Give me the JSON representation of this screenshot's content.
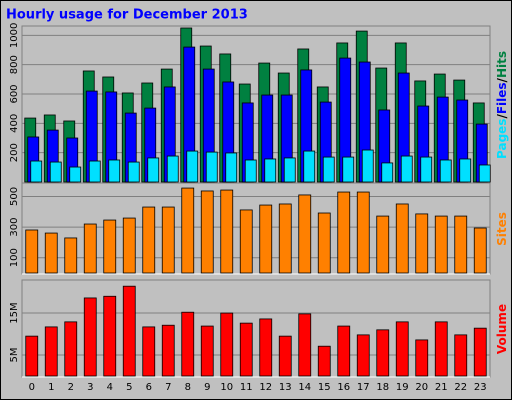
{
  "chart_data": [
    {
      "type": "bar",
      "title": "Hourly usage for December 2013",
      "categories": [
        "0",
        "1",
        "2",
        "3",
        "4",
        "5",
        "6",
        "7",
        "8",
        "9",
        "10",
        "11",
        "12",
        "13",
        "14",
        "15",
        "16",
        "17",
        "18",
        "19",
        "20",
        "21",
        "22",
        "23"
      ],
      "legend_separator": "/",
      "ylim": [
        0,
        1050
      ],
      "yticks": [
        200,
        400,
        600,
        800,
        1000
      ],
      "series": [
        {
          "name": "Hits",
          "color": "#008040",
          "values": [
            436,
            457,
            416,
            757,
            716,
            607,
            675,
            770,
            1050,
            927,
            873,
            668,
            811,
            743,
            907,
            648,
            948,
            1029,
            777,
            948,
            689,
            736,
            695,
            539
          ]
        },
        {
          "name": "Files",
          "color": "#0000ff",
          "values": [
            307,
            354,
            300,
            620,
            614,
            470,
            504,
            648,
            920,
            770,
            682,
            539,
            593,
            593,
            764,
            545,
            845,
            818,
            491,
            743,
            518,
            579,
            559,
            395
          ]
        },
        {
          "name": "Pages",
          "color": "#00e0ff",
          "values": [
            143,
            136,
            102,
            143,
            150,
            136,
            164,
            177,
            211,
            204,
            198,
            150,
            157,
            164,
            211,
            170,
            170,
            218,
            130,
            177,
            170,
            150,
            157,
            116
          ]
        }
      ]
    },
    {
      "type": "bar",
      "ylim": [
        0,
        575
      ],
      "yticks": [
        100,
        300,
        500
      ],
      "series": [
        {
          "name": "Sites",
          "color": "#ff8000",
          "values": [
            281,
            261,
            229,
            320,
            346,
            359,
            431,
            431,
            555,
            536,
            542,
            412,
            444,
            451,
            510,
            392,
            529,
            529,
            372,
            451,
            386,
            372,
            372,
            294
          ]
        }
      ]
    },
    {
      "type": "bar",
      "ylim": [
        0,
        22.4
      ],
      "yticks": [
        {
          "value": 5,
          "label": "5M"
        },
        {
          "value": 15,
          "label": "15M"
        }
      ],
      "series": [
        {
          "name": "Volume",
          "color": "#ff0000",
          "values": [
            9.5,
            11.7,
            12.9,
            18.6,
            19.0,
            21.4,
            11.7,
            12.1,
            15.2,
            11.9,
            15.0,
            12.6,
            13.6,
            9.5,
            14.8,
            7.1,
            11.9,
            9.8,
            11.0,
            12.9,
            8.6,
            12.9,
            9.8,
            11.4
          ]
        }
      ]
    }
  ]
}
